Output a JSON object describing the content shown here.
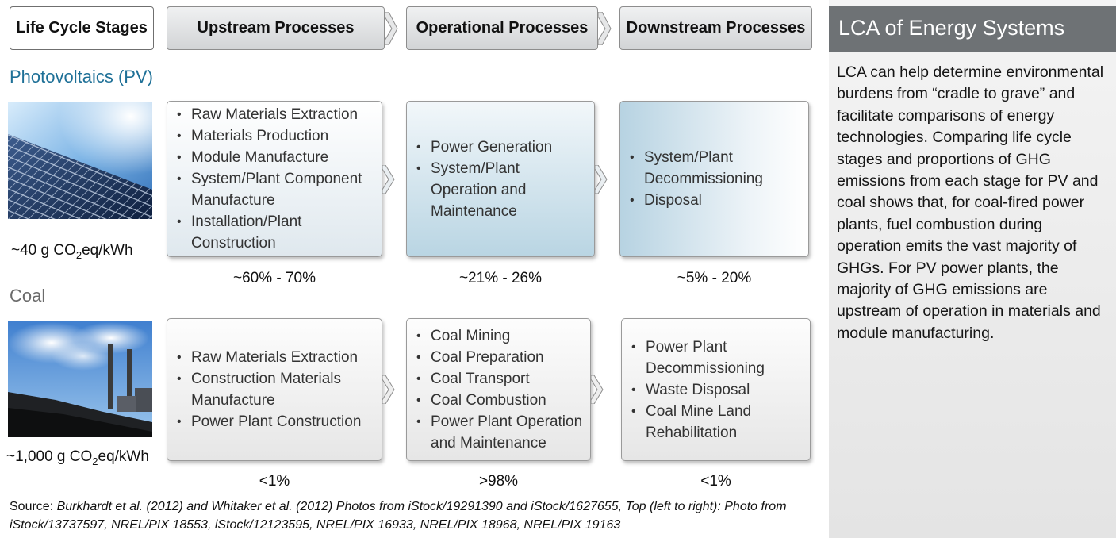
{
  "header": {
    "stages_label": "Life Cycle Stages",
    "upstream": "Upstream Processes",
    "operational": "Operational Processes",
    "downstream": "Downstream  Processes"
  },
  "pv": {
    "title": "Photovoltaics (PV)",
    "emissions": {
      "prefix": "~40 g CO",
      "sub": "2",
      "suffix": "eq/kWh"
    },
    "upstream_items": [
      "Raw Materials Extraction",
      "Materials Production",
      "Module Manufacture",
      "System/Plant Component Manufacture",
      "Installation/Plant Construction"
    ],
    "operational_items": [
      "Power Generation",
      "System/Plant Operation and Maintenance"
    ],
    "downstream_items": [
      "System/Plant Decommissioning",
      "Disposal"
    ],
    "shares": [
      "~60% - 70%",
      "~21% - 26%",
      "~5% - 20%"
    ]
  },
  "coal": {
    "title": "Coal",
    "emissions": {
      "prefix": "~1,000 g CO",
      "sub": "2",
      "suffix": "eq/kWh"
    },
    "upstream_items": [
      "Raw Materials Extraction",
      "Construction Materials Manufacture",
      "Power Plant Construction"
    ],
    "operational_items": [
      "Coal Mining",
      "Coal Preparation",
      "Coal Transport",
      "Coal Combustion",
      "Power Plant Operation and Maintenance"
    ],
    "downstream_items": [
      "Power Plant Decommissioning",
      "Waste Disposal",
      "Coal Mine Land Rehabilitation"
    ],
    "shares": [
      "<1%",
      ">98%",
      "<1%"
    ]
  },
  "source": {
    "label": "Source: ",
    "text": "Burkhardt et al. (2012) and Whitaker et al. (2012)  Photos from iStock/19291390 and iStock/1627655, Top (left to right): Photo from iStock/13737597, NREL/PIX 18553, iStock/12123595, NREL/PIX 16933, NREL/PIX 18968, NREL/PIX 19163"
  },
  "sidebar": {
    "title": "LCA of Energy Systems",
    "body": "LCA can help determine environmental burdens from “cradle to grave” and facilitate comparisons of energy technologies. Comparing life cycle stages and proportions of GHG emissions from each stage for PV and coal shows that, for coal-fired power plants, fuel combustion during operation emits the vast majority of GHGs. For PV power plants, the majority of GHG emissions are upstream of operation in materials and module manufacturing."
  },
  "colors": {
    "pv_title": "#1e7097",
    "coal_title": "#6b6b6b",
    "sidebar_header": "#6e7275"
  },
  "icons": {
    "flow_arrow": "chevron-right-icon"
  }
}
